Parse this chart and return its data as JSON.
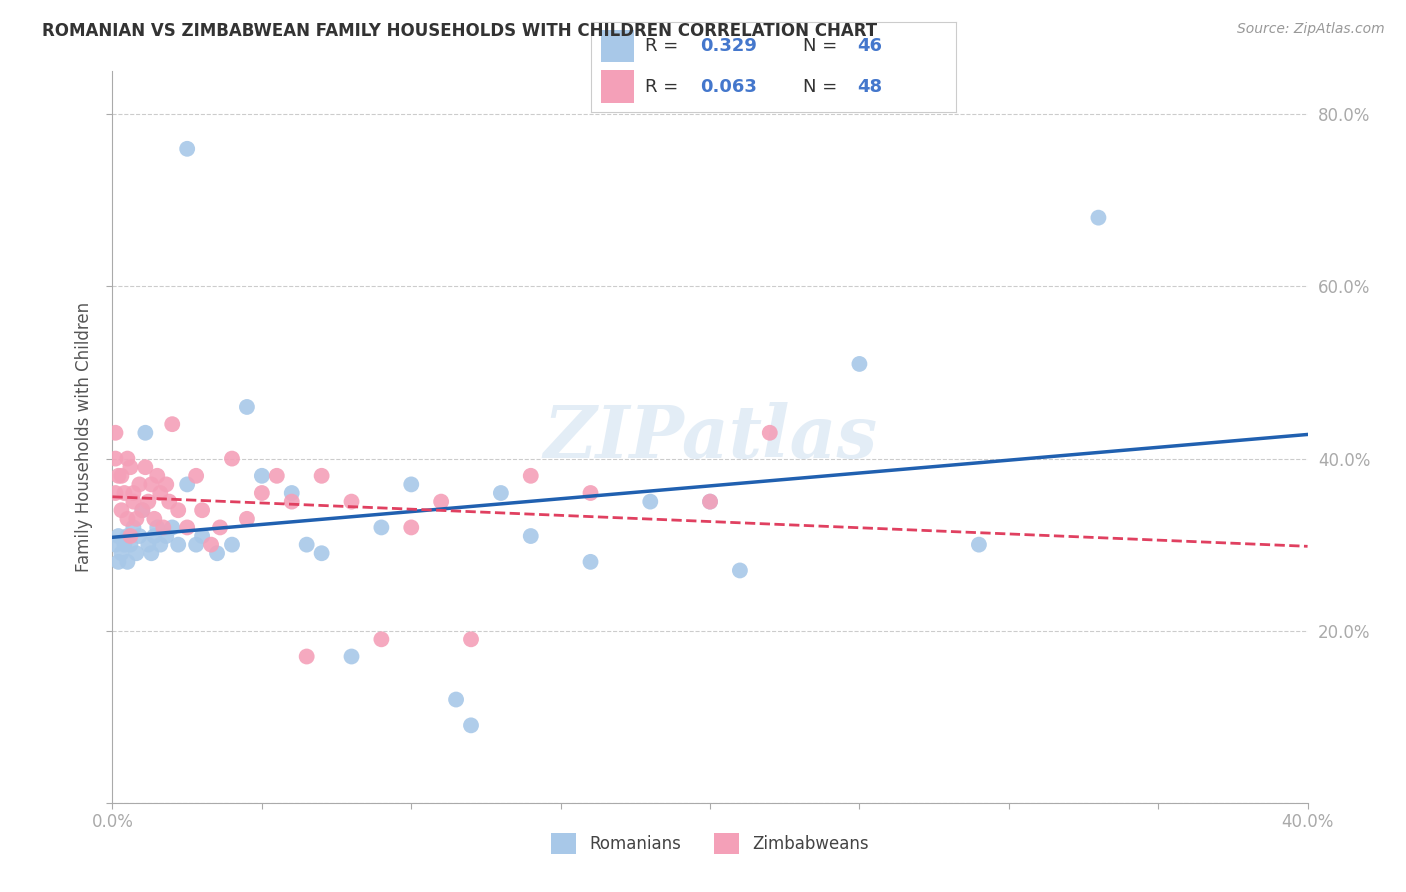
{
  "title": "ROMANIAN VS ZIMBABWEAN FAMILY HOUSEHOLDS WITH CHILDREN CORRELATION CHART",
  "source": "Source: ZipAtlas.com",
  "ylabel": "Family Households with Children",
  "xlim": [
    0.0,
    0.4
  ],
  "ylim": [
    0.0,
    0.85
  ],
  "xtick_vals": [
    0.0,
    0.05,
    0.1,
    0.15,
    0.2,
    0.25,
    0.3,
    0.35,
    0.4
  ],
  "ytick_vals": [
    0.0,
    0.2,
    0.4,
    0.6,
    0.8
  ],
  "xtick_labels": [
    "0.0%",
    "",
    "",
    "",
    "",
    "",
    "",
    "",
    "40.0%"
  ],
  "ytick_labels": [
    "",
    "20.0%",
    "40.0%",
    "60.0%",
    "80.0%"
  ],
  "romanian_color": "#a8c8e8",
  "zimbabwean_color": "#f4a0b8",
  "romanian_line_color": "#2060b0",
  "zimbabwean_line_color": "#e04060",
  "tick_color": "#5599cc",
  "watermark": "ZIPatlas",
  "legend_blue": "#4477cc",
  "rom_x": [
    0.001,
    0.002,
    0.002,
    0.003,
    0.004,
    0.005,
    0.005,
    0.006,
    0.007,
    0.008,
    0.009,
    0.01,
    0.011,
    0.012,
    0.013,
    0.014,
    0.015,
    0.016,
    0.018,
    0.02,
    0.022,
    0.025,
    0.028,
    0.03,
    0.035,
    0.04,
    0.045,
    0.05,
    0.06,
    0.065,
    0.07,
    0.08,
    0.09,
    0.1,
    0.115,
    0.13,
    0.16,
    0.2,
    0.25,
    0.29,
    0.33,
    0.025,
    0.14,
    0.18,
    0.21,
    0.12
  ],
  "rom_y": [
    0.3,
    0.31,
    0.28,
    0.29,
    0.3,
    0.31,
    0.28,
    0.3,
    0.32,
    0.29,
    0.31,
    0.34,
    0.43,
    0.3,
    0.29,
    0.31,
    0.32,
    0.3,
    0.31,
    0.32,
    0.3,
    0.37,
    0.3,
    0.31,
    0.29,
    0.3,
    0.46,
    0.38,
    0.36,
    0.3,
    0.29,
    0.17,
    0.32,
    0.37,
    0.12,
    0.36,
    0.28,
    0.35,
    0.51,
    0.3,
    0.68,
    0.76,
    0.31,
    0.35,
    0.27,
    0.09
  ],
  "zim_x": [
    0.001,
    0.001,
    0.001,
    0.002,
    0.003,
    0.003,
    0.004,
    0.005,
    0.005,
    0.006,
    0.006,
    0.007,
    0.007,
    0.008,
    0.009,
    0.01,
    0.011,
    0.012,
    0.013,
    0.014,
    0.015,
    0.016,
    0.017,
    0.018,
    0.019,
    0.02,
    0.022,
    0.025,
    0.028,
    0.03,
    0.033,
    0.036,
    0.04,
    0.045,
    0.05,
    0.055,
    0.06,
    0.065,
    0.07,
    0.08,
    0.09,
    0.1,
    0.11,
    0.12,
    0.14,
    0.16,
    0.2,
    0.22
  ],
  "zim_y": [
    0.43,
    0.4,
    0.36,
    0.38,
    0.34,
    0.38,
    0.36,
    0.33,
    0.4,
    0.31,
    0.39,
    0.36,
    0.35,
    0.33,
    0.37,
    0.34,
    0.39,
    0.35,
    0.37,
    0.33,
    0.38,
    0.36,
    0.32,
    0.37,
    0.35,
    0.44,
    0.34,
    0.32,
    0.38,
    0.34,
    0.3,
    0.32,
    0.4,
    0.33,
    0.36,
    0.38,
    0.35,
    0.17,
    0.38,
    0.35,
    0.19,
    0.32,
    0.35,
    0.19,
    0.38,
    0.36,
    0.35,
    0.43
  ]
}
